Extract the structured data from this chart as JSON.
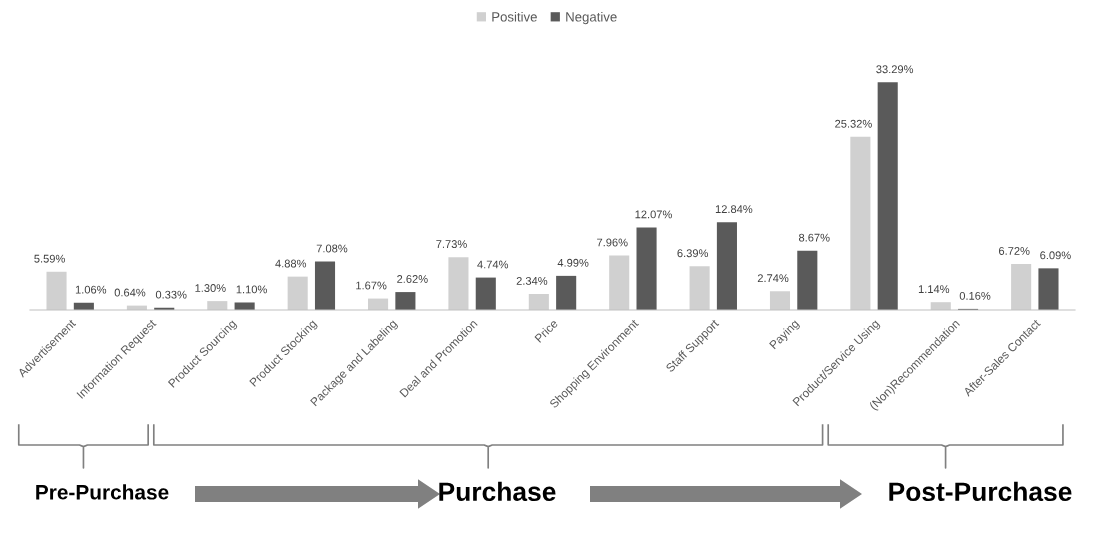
{
  "chart_data": {
    "type": "bar",
    "categories": [
      "Advertisement",
      "Information Request",
      "Product Sourcing",
      "Product Stocking",
      "Package and Labeling",
      "Deal and Promotion",
      "Price",
      "Shopping Environment",
      "Staff Support",
      "Paying",
      "Product/Service Using",
      "(Non)Recommendation",
      "After-Sales Contact"
    ],
    "series": [
      {
        "name": "Positive",
        "color": "#d0d0d0",
        "values": [
          5.59,
          0.64,
          1.3,
          4.88,
          1.67,
          7.73,
          2.34,
          7.96,
          6.39,
          2.74,
          25.32,
          1.14,
          6.72
        ],
        "value_labels": [
          "5.59%",
          "0.64%",
          "1.30%",
          "4.88%",
          "1.67%",
          "7.73%",
          "2.34%",
          "7.96%",
          "6.39%",
          "2.74%",
          "25.32%",
          "1.14%",
          "6.72%"
        ]
      },
      {
        "name": "Negative",
        "color": "#5a5a5a",
        "values": [
          1.06,
          0.33,
          1.1,
          7.08,
          2.62,
          4.74,
          4.99,
          12.07,
          12.84,
          8.67,
          33.29,
          0.16,
          6.09
        ],
        "value_labels": [
          "1.06%",
          "0.33%",
          "1.10%",
          "7.08%",
          "2.62%",
          "4.74%",
          "4.99%",
          "12.07%",
          "12.84%",
          "8.67%",
          "33.29%",
          "0.16%",
          "6.09%"
        ]
      }
    ],
    "legend": "top",
    "grid": false,
    "annotations": [
      "Pre-Purchase",
      "Purchase",
      "Post-Purchase"
    ]
  }
}
